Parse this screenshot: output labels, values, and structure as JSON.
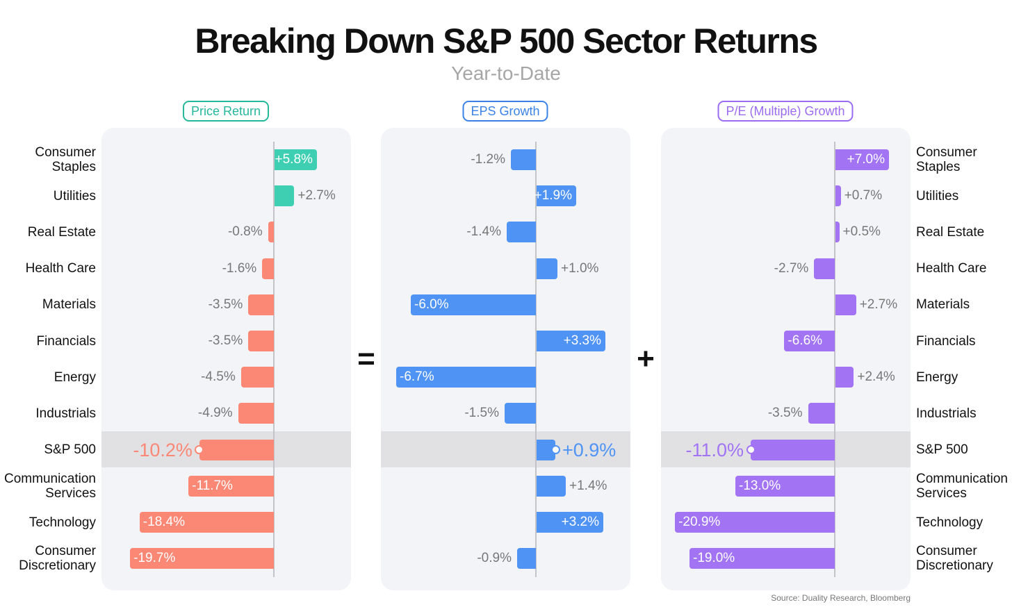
{
  "title": "Breaking Down S&P 500 Sector Returns",
  "subtitle": "Year-to-Date",
  "operators": [
    "=",
    "+"
  ],
  "source": "Source: Duality Research, Bloomberg",
  "colors": {
    "price_positive": "#3ecfb2",
    "price_negative": "#fb8775",
    "eps": "#4f93f5",
    "pe": "#a274f4",
    "price_title": "#27b89b",
    "eps_title": "#3b82e6",
    "pe_title": "#9b6bf0",
    "sp_band": "#e1e1e4",
    "panel_bg": "#f3f4f8"
  },
  "chart_data": {
    "type": "bar",
    "orientation": "horizontal",
    "title": "Breaking Down S&P 500 Sector Returns",
    "subtitle": "Year-to-Date",
    "categories": [
      "Consumer\nStaples",
      "Utilities",
      "Real Estate",
      "Health Care",
      "Materials",
      "Financials",
      "Energy",
      "Industrials",
      "S&P 500",
      "Communication\nServices",
      "Technology",
      "Consumer\nDiscretionary"
    ],
    "highlight_category": "S&P 500",
    "series": [
      {
        "name": "Price Return",
        "values": [
          5.8,
          2.7,
          -0.8,
          -1.6,
          -3.5,
          -3.5,
          -4.5,
          -4.9,
          -10.2,
          -11.7,
          -18.4,
          -19.7
        ],
        "labels": [
          "+5.8%",
          "+2.7%",
          "-0.8%",
          "-1.6%",
          "-3.5%",
          "-3.5%",
          "-4.5%",
          "-4.9%",
          "-10.2%",
          "-11.7%",
          "-18.4%",
          "-19.7%"
        ]
      },
      {
        "name": "EPS Growth",
        "values": [
          -1.2,
          1.9,
          -1.4,
          1.0,
          -6.0,
          3.3,
          -6.7,
          -1.5,
          0.9,
          1.4,
          3.2,
          -0.9
        ],
        "labels": [
          "-1.2%",
          "+1.9%",
          "-1.4%",
          "+1.0%",
          "-6.0%",
          "+3.3%",
          "-6.7%",
          "-1.5%",
          "+0.9%",
          "+1.4%",
          "+3.2%",
          "-0.9%"
        ]
      },
      {
        "name": "P/E (Multiple) Growth",
        "values": [
          7.0,
          0.7,
          0.5,
          -2.7,
          2.7,
          -6.6,
          2.4,
          -3.5,
          -11.0,
          -13.0,
          -20.9,
          -19.0
        ],
        "labels": [
          "+7.0%",
          "+0.7%",
          "+0.5%",
          "-2.7%",
          "+2.7%",
          "-6.6%",
          "+2.4%",
          "-3.5%",
          "-11.0%",
          "-13.0%",
          "-20.9%",
          "-19.0%"
        ]
      }
    ]
  }
}
